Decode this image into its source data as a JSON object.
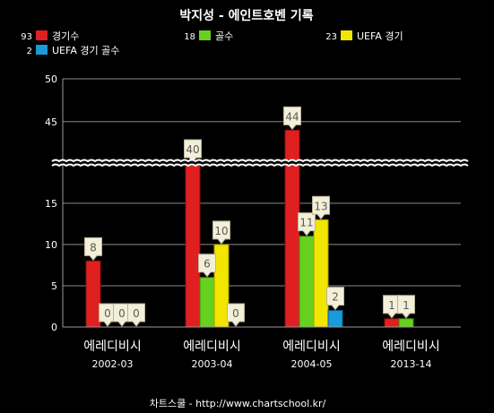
{
  "chart_data": {
    "type": "bar",
    "title": "박지성 - 에인트호벤 기록",
    "footer": "차트스쿨 - http://www.chartschool.kr/",
    "categories": [
      {
        "club": "에레디비시",
        "season": "2002-03"
      },
      {
        "club": "에레디비시",
        "season": "2003-04"
      },
      {
        "club": "에레디비시",
        "season": "2004-05"
      },
      {
        "club": "에레디비시",
        "season": "2013-14"
      }
    ],
    "series": [
      {
        "name": "경기수",
        "total": "93",
        "color": "#e02020",
        "values": [
          8,
          40,
          44,
          1
        ]
      },
      {
        "name": "골수",
        "total": "18",
        "color": "#66d11f",
        "values": [
          0,
          6,
          11,
          1
        ]
      },
      {
        "name": "UEFA 경기",
        "total": "23",
        "color": "#f2e600",
        "values": [
          0,
          10,
          13,
          null
        ]
      },
      {
        "name": "UEFA 경기 골수",
        "total": "2",
        "color": "#1a9ad9",
        "values": [
          0,
          0,
          2,
          null
        ]
      }
    ],
    "y_ticks_lower": [
      0,
      5,
      10,
      15
    ],
    "y_ticks_upper": [
      45,
      50
    ],
    "axis_break": [
      19,
      41
    ],
    "ylim": [
      0,
      50
    ],
    "grid": true,
    "legend_position": "top-left",
    "data_labels": true
  }
}
